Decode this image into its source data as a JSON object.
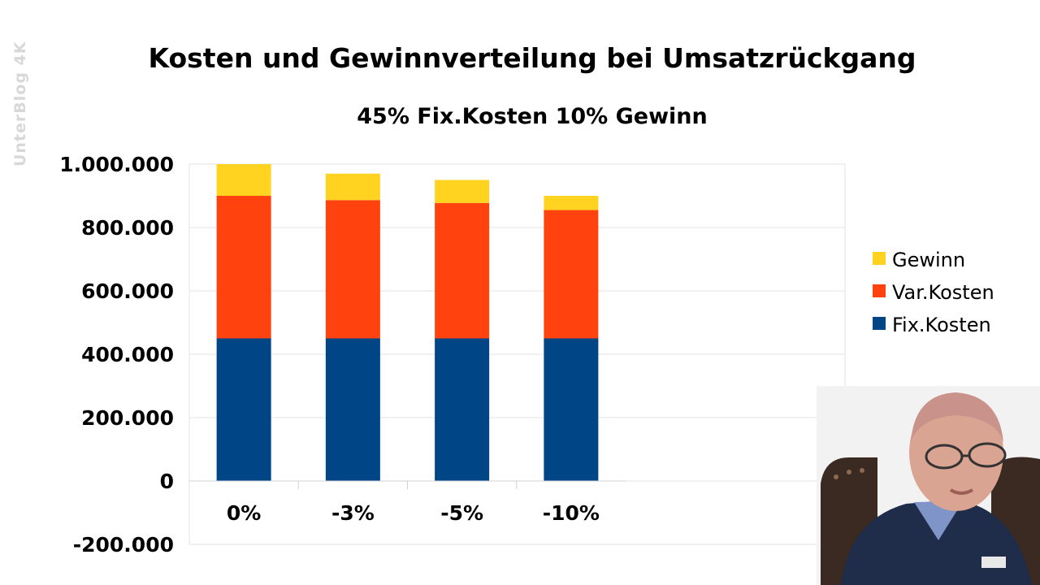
{
  "watermark": "UnterBlog 4K",
  "chart_data": {
    "type": "bar",
    "stacked": true,
    "title": "Kosten und Gewinnverteilung bei Umsatzrückgang",
    "subtitle": "45% Fix.Kosten 10% Gewinn",
    "categories": [
      "0%",
      "-3%",
      "-5%",
      "-10%"
    ],
    "series": [
      {
        "name": "Fix.Kosten",
        "color": "#004586",
        "values": [
          450000,
          450000,
          450000,
          450000
        ]
      },
      {
        "name": "Var.Kosten",
        "color": "#ff420e",
        "values": [
          450000,
          436500,
          427500,
          405000
        ]
      },
      {
        "name": "Gewinn",
        "color": "#ffd320",
        "values": [
          100000,
          83500,
          72500,
          45000
        ]
      }
    ],
    "legend_order": [
      "Gewinn",
      "Var.Kosten",
      "Fix.Kosten"
    ],
    "y_ticks": [
      "-200.000",
      "0",
      "200.000",
      "400.000",
      "600.000",
      "800.000",
      "1.000.000"
    ],
    "y_tick_values": [
      -200000,
      0,
      200000,
      400000,
      600000,
      800000,
      1000000
    ],
    "ylim": [
      -200000,
      1000000
    ],
    "grid": true,
    "legend_position": "right"
  }
}
